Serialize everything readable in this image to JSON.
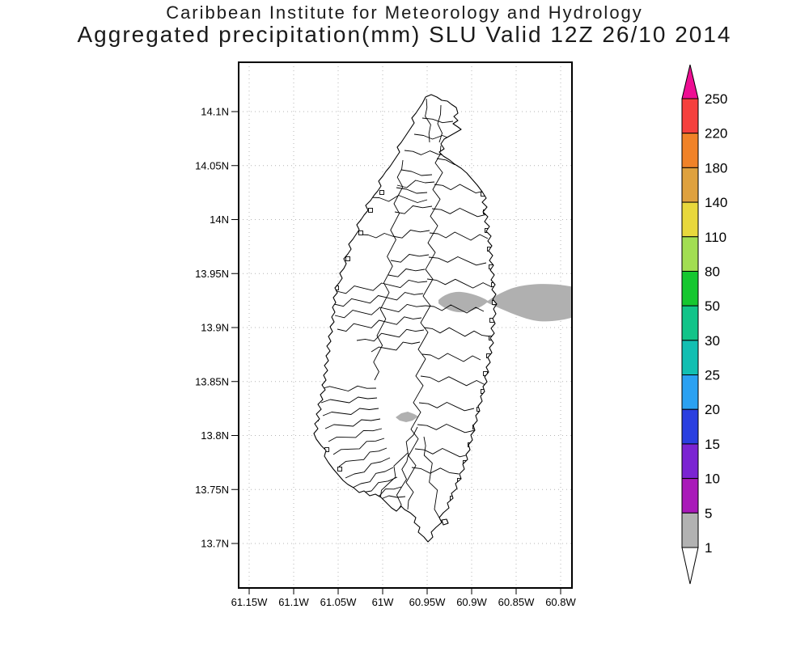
{
  "figure": {
    "title_line1": "Caribbean Institute for Meteorology and Hydrology",
    "title_line2": "Aggregated precipitation(mm) SLU Valid 12Z 26/10 2014"
  },
  "chart_data": {
    "type": "map",
    "subtype": "filled-contour precipitation map with watershed boundaries",
    "region": "Saint Lucia (SLU)",
    "variable": "Aggregated precipitation (mm)",
    "valid_time": "12Z 26/10 2014",
    "institution": "Caribbean Institute for Meteorology and Hydrology",
    "grid": "dotted",
    "x_axis": {
      "ticks": [
        "61.15W",
        "61.1W",
        "61.05W",
        "61W",
        "60.95W",
        "60.9W",
        "60.85W",
        "60.8W"
      ]
    },
    "y_axis": {
      "ticks": [
        "14.1N",
        "14.05N",
        "14N",
        "13.95N",
        "13.9N",
        "13.85N",
        "13.8N",
        "13.75N",
        "13.7N"
      ]
    },
    "colorbar": {
      "orientation": "vertical",
      "position": "right",
      "levels_ascending": [
        1,
        5,
        10,
        15,
        20,
        25,
        30,
        50,
        80,
        110,
        140,
        180,
        220,
        250
      ],
      "tick_labels_top_to_bottom": [
        "250",
        "220",
        "180",
        "140",
        "110",
        "80",
        "50",
        "30",
        "25",
        "20",
        "15",
        "10",
        "5",
        "1"
      ],
      "segment_colors_ascending": [
        "#b2b2b2",
        "#a919b9",
        "#7b24d2",
        "#2a3fe0",
        "#2ba1f2",
        "#12bfb2",
        "#12c489",
        "#15c72f",
        "#a2de52",
        "#e8d83c",
        "#dfa13e",
        "#f08228",
        "#f5403d"
      ],
      "below_min_color": "#ffffff",
      "above_max_color": "#ee0e93"
    },
    "shaded_regions": [
      {
        "description": "Band of 1-5 mm precipitation crossing the east coast near 13.92N / 60.9W, widening eastward to the map edge",
        "value_range_mm": "1-5",
        "color": "#b0b0b0"
      },
      {
        "description": "Small inland 1-5 mm spot near 13.82N / 60.97W",
        "value_range_mm": "1-5",
        "color": "#b0b0b0"
      }
    ],
    "map_layers": [
      "island coastline",
      "watershed boundary polygons",
      "offshore islet near southeast tip"
    ]
  }
}
